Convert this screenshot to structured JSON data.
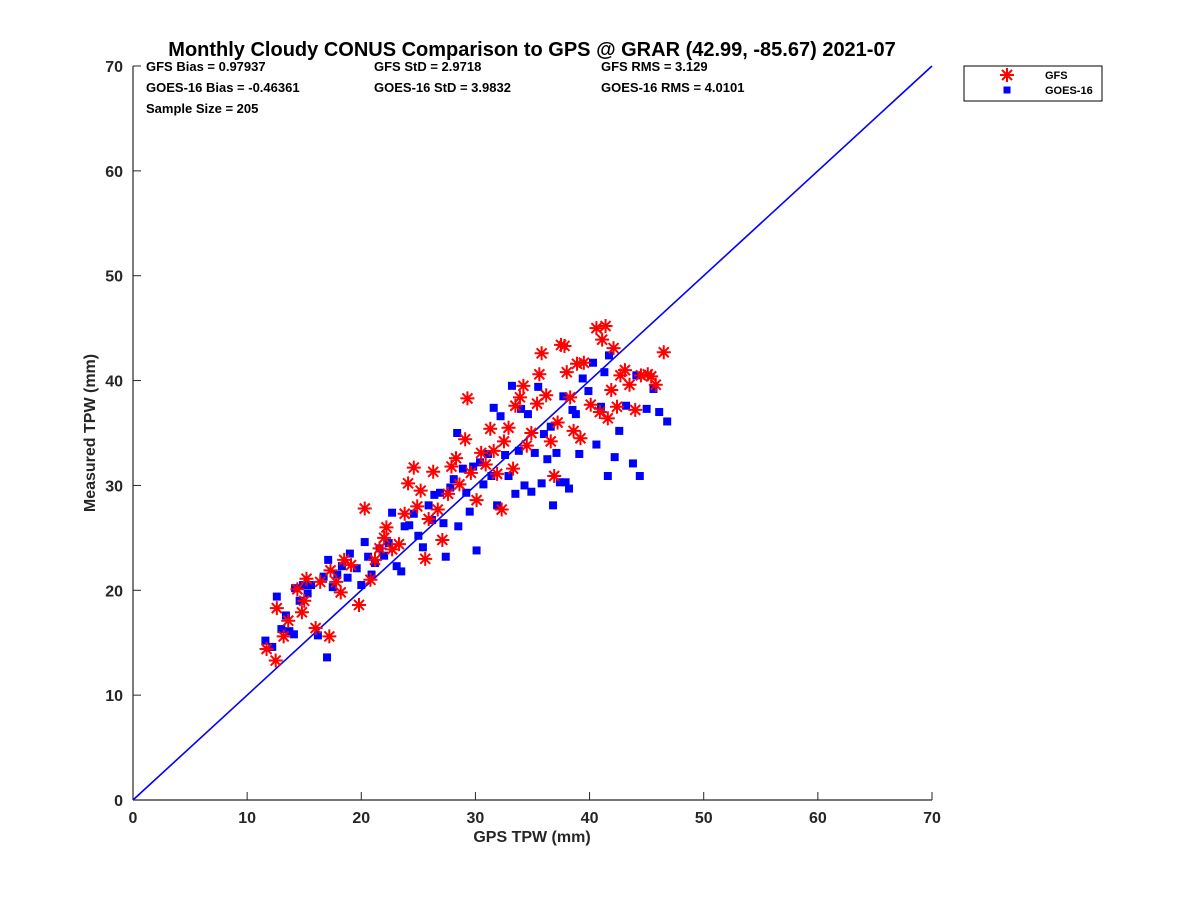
{
  "chart_data": {
    "type": "scatter",
    "title": "Monthly Cloudy CONUS Comparison to GPS @ GRAR (42.99, -85.67) 2021-07",
    "xlabel": "GPS TPW (mm)",
    "ylabel": "Measured TPW (mm)",
    "xlim": [
      0,
      70
    ],
    "ylim": [
      0,
      70
    ],
    "xticks": [
      "0",
      "10",
      "20",
      "30",
      "40",
      "50",
      "60",
      "70"
    ],
    "yticks": [
      "0",
      "10",
      "20",
      "30",
      "40",
      "50",
      "60",
      "70"
    ],
    "grid": false,
    "legend": "top-right, outside plot",
    "stats": [
      "GFS Bias = 0.97937",
      "GFS StD = 2.9718",
      "GFS RMS = 3.129",
      "GOES-16 Bias = -0.46361",
      "GOES-16 StD = 3.9832",
      "GOES-16 RMS = 4.0101",
      "Sample Size = 205"
    ],
    "reference_line": {
      "x": [
        0,
        70
      ],
      "y": [
        0,
        70
      ],
      "color": "#0000ff"
    },
    "series": [
      {
        "name": "GFS",
        "marker": "asterisk",
        "color": "#ff0000",
        "points": [
          [
            11.7,
            14.4
          ],
          [
            12.5,
            13.3
          ],
          [
            12.6,
            18.3
          ],
          [
            13.2,
            15.6
          ],
          [
            13.6,
            17.1
          ],
          [
            14.4,
            20.1
          ],
          [
            14.8,
            17.9
          ],
          [
            15.2,
            21.1
          ],
          [
            15.0,
            19.0
          ],
          [
            16.0,
            16.4
          ],
          [
            16.4,
            20.8
          ],
          [
            17.2,
            15.6
          ],
          [
            17.3,
            21.9
          ],
          [
            17.8,
            20.8
          ],
          [
            18.2,
            19.8
          ],
          [
            18.5,
            22.9
          ],
          [
            19.1,
            22.4
          ],
          [
            19.8,
            18.6
          ],
          [
            20.3,
            27.8
          ],
          [
            20.8,
            21.0
          ],
          [
            21.2,
            22.9
          ],
          [
            21.6,
            24.0
          ],
          [
            22.0,
            25.0
          ],
          [
            22.2,
            26.0
          ],
          [
            22.7,
            23.9
          ],
          [
            23.3,
            24.4
          ],
          [
            23.8,
            27.3
          ],
          [
            24.1,
            30.2
          ],
          [
            24.6,
            31.7
          ],
          [
            24.9,
            28.0
          ],
          [
            25.2,
            29.5
          ],
          [
            25.6,
            23.0
          ],
          [
            25.9,
            26.8
          ],
          [
            26.3,
            31.3
          ],
          [
            26.7,
            27.7
          ],
          [
            27.1,
            24.8
          ],
          [
            27.6,
            29.2
          ],
          [
            27.9,
            31.8
          ],
          [
            28.3,
            32.6
          ],
          [
            28.6,
            30.1
          ],
          [
            29.1,
            34.4
          ],
          [
            29.3,
            38.3
          ],
          [
            29.6,
            31.2
          ],
          [
            30.1,
            28.6
          ],
          [
            30.5,
            33.1
          ],
          [
            30.9,
            32.0
          ],
          [
            31.3,
            35.4
          ],
          [
            31.6,
            33.3
          ],
          [
            31.9,
            31.1
          ],
          [
            32.3,
            27.7
          ],
          [
            32.5,
            34.2
          ],
          [
            32.9,
            35.5
          ],
          [
            33.3,
            31.6
          ],
          [
            33.5,
            37.6
          ],
          [
            33.9,
            38.4
          ],
          [
            34.2,
            39.5
          ],
          [
            34.5,
            33.8
          ],
          [
            34.9,
            35.0
          ],
          [
            35.4,
            37.8
          ],
          [
            35.6,
            40.6
          ],
          [
            35.8,
            42.6
          ],
          [
            36.2,
            38.6
          ],
          [
            36.6,
            34.2
          ],
          [
            36.9,
            30.9
          ],
          [
            37.2,
            36.0
          ],
          [
            37.5,
            43.4
          ],
          [
            37.8,
            43.3
          ],
          [
            38.0,
            40.8
          ],
          [
            38.3,
            38.4
          ],
          [
            38.6,
            35.2
          ],
          [
            38.9,
            41.6
          ],
          [
            39.2,
            34.5
          ],
          [
            39.5,
            41.7
          ],
          [
            40.1,
            37.7
          ],
          [
            40.6,
            45.0
          ],
          [
            40.9,
            37.0
          ],
          [
            41.1,
            43.9
          ],
          [
            41.4,
            45.2
          ],
          [
            41.6,
            36.4
          ],
          [
            41.9,
            39.1
          ],
          [
            42.1,
            43.1
          ],
          [
            42.4,
            37.5
          ],
          [
            42.7,
            40.5
          ],
          [
            43.1,
            41.0
          ],
          [
            43.5,
            39.6
          ],
          [
            44.0,
            37.2
          ],
          [
            44.5,
            40.5
          ],
          [
            45.1,
            40.6
          ],
          [
            45.4,
            40.4
          ],
          [
            45.8,
            39.6
          ],
          [
            46.5,
            42.7
          ]
        ]
      },
      {
        "name": "GOES-16",
        "marker": "square",
        "color": "#0000ff",
        "points": [
          [
            11.6,
            15.2
          ],
          [
            12.2,
            14.6
          ],
          [
            12.6,
            19.4
          ],
          [
            13.0,
            16.3
          ],
          [
            13.4,
            17.6
          ],
          [
            13.7,
            16.1
          ],
          [
            14.1,
            15.8
          ],
          [
            14.2,
            20.2
          ],
          [
            14.6,
            19.0
          ],
          [
            14.9,
            20.5
          ],
          [
            15.3,
            19.7
          ],
          [
            15.6,
            20.5
          ],
          [
            16.2,
            15.7
          ],
          [
            16.7,
            21.3
          ],
          [
            17.0,
            13.6
          ],
          [
            17.1,
            22.9
          ],
          [
            17.5,
            20.3
          ],
          [
            17.9,
            21.5
          ],
          [
            18.3,
            22.3
          ],
          [
            18.8,
            21.2
          ],
          [
            19.0,
            23.5
          ],
          [
            19.6,
            22.1
          ],
          [
            20.0,
            20.5
          ],
          [
            20.3,
            24.6
          ],
          [
            20.6,
            23.2
          ],
          [
            20.9,
            21.5
          ],
          [
            21.2,
            22.6
          ],
          [
            21.6,
            24.0
          ],
          [
            22.0,
            23.3
          ],
          [
            22.4,
            24.5
          ],
          [
            22.7,
            27.4
          ],
          [
            23.1,
            22.3
          ],
          [
            23.5,
            21.8
          ],
          [
            23.8,
            26.1
          ],
          [
            24.2,
            26.2
          ],
          [
            24.6,
            27.3
          ],
          [
            25.0,
            25.2
          ],
          [
            25.4,
            24.1
          ],
          [
            25.9,
            28.1
          ],
          [
            26.2,
            26.7
          ],
          [
            26.4,
            29.1
          ],
          [
            26.9,
            29.3
          ],
          [
            27.2,
            26.4
          ],
          [
            27.4,
            23.2
          ],
          [
            27.8,
            29.8
          ],
          [
            28.1,
            30.6
          ],
          [
            28.4,
            35.0
          ],
          [
            28.5,
            26.1
          ],
          [
            28.9,
            31.6
          ],
          [
            29.2,
            29.3
          ],
          [
            29.5,
            27.5
          ],
          [
            29.8,
            31.8
          ],
          [
            30.1,
            23.8
          ],
          [
            30.4,
            32.2
          ],
          [
            30.7,
            30.1
          ],
          [
            31.1,
            33.0
          ],
          [
            31.4,
            30.9
          ],
          [
            31.6,
            37.4
          ],
          [
            31.9,
            28.1
          ],
          [
            32.2,
            36.6
          ],
          [
            32.6,
            32.9
          ],
          [
            32.9,
            30.9
          ],
          [
            33.2,
            39.5
          ],
          [
            33.5,
            29.2
          ],
          [
            33.8,
            33.3
          ],
          [
            34.0,
            37.3
          ],
          [
            34.3,
            30.0
          ],
          [
            34.6,
            36.8
          ],
          [
            34.9,
            29.4
          ],
          [
            35.2,
            33.1
          ],
          [
            35.5,
            39.4
          ],
          [
            35.8,
            30.2
          ],
          [
            36.0,
            34.9
          ],
          [
            36.3,
            32.5
          ],
          [
            36.6,
            35.6
          ],
          [
            36.8,
            28.1
          ],
          [
            37.1,
            33.1
          ],
          [
            37.4,
            30.3
          ],
          [
            37.7,
            38.5
          ],
          [
            37.9,
            30.3
          ],
          [
            38.2,
            29.7
          ],
          [
            38.5,
            37.2
          ],
          [
            38.8,
            36.8
          ],
          [
            39.1,
            33.0
          ],
          [
            39.4,
            40.2
          ],
          [
            39.9,
            39.0
          ],
          [
            40.3,
            41.7
          ],
          [
            40.6,
            33.9
          ],
          [
            41.0,
            37.5
          ],
          [
            41.3,
            40.8
          ],
          [
            41.7,
            42.4
          ],
          [
            41.6,
            30.9
          ],
          [
            42.2,
            32.7
          ],
          [
            42.6,
            35.2
          ],
          [
            43.2,
            37.6
          ],
          [
            43.8,
            32.1
          ],
          [
            44.1,
            40.5
          ],
          [
            44.4,
            30.9
          ],
          [
            45.0,
            37.3
          ],
          [
            45.6,
            39.2
          ],
          [
            46.1,
            37.0
          ],
          [
            46.8,
            36.1
          ]
        ]
      }
    ]
  }
}
